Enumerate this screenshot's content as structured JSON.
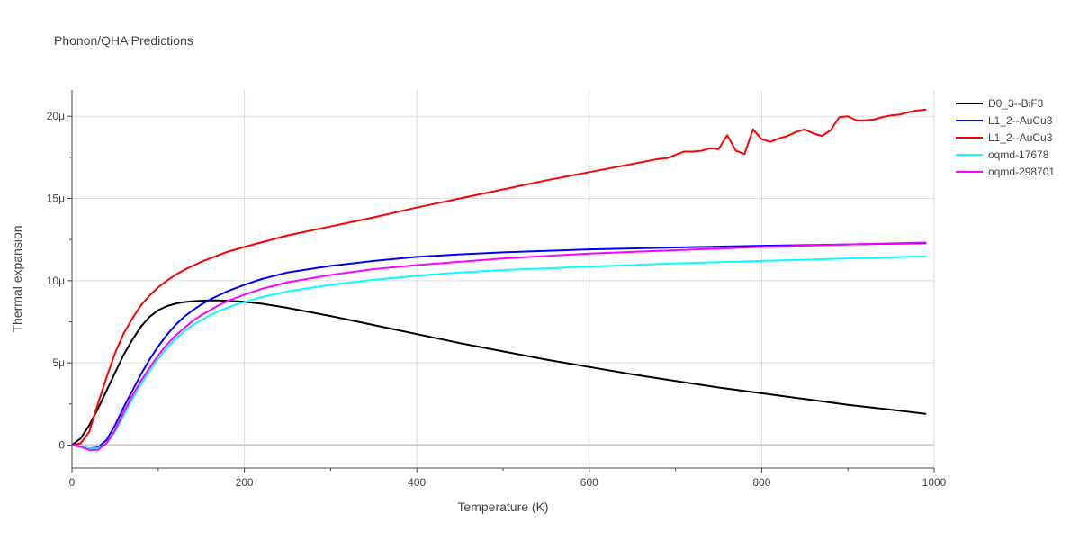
{
  "chart_data": {
    "type": "line",
    "title": "Phonon/QHA Predictions",
    "xlabel": "Temperature (K)",
    "ylabel": "Thermal expansion",
    "xlim": [
      0,
      1000
    ],
    "ylim": [
      -1.4e-06,
      2.16e-05
    ],
    "x_ticks": [
      {
        "value": 0,
        "label": "0"
      },
      {
        "value": 200,
        "label": "200"
      },
      {
        "value": 400,
        "label": "400"
      },
      {
        "value": 600,
        "label": "600"
      },
      {
        "value": 800,
        "label": "800"
      },
      {
        "value": 1000,
        "label": "1000"
      }
    ],
    "y_ticks": [
      {
        "value": 0,
        "label": "0"
      },
      {
        "value": 5e-06,
        "label": "5μ"
      },
      {
        "value": 1e-05,
        "label": "10μ"
      },
      {
        "value": 1.5e-05,
        "label": "15μ"
      },
      {
        "value": 2e-05,
        "label": "20μ"
      }
    ],
    "grid": true,
    "legend_position": "top-right",
    "series": [
      {
        "name": "D0_3--BiF3",
        "color": "#000000",
        "x": [
          0,
          10,
          20,
          30,
          40,
          50,
          60,
          70,
          80,
          90,
          100,
          110,
          120,
          130,
          140,
          150,
          160,
          170,
          180,
          190,
          200,
          220,
          250,
          300,
          350,
          400,
          450,
          500,
          550,
          600,
          650,
          700,
          750,
          800,
          850,
          900,
          950,
          990
        ],
        "y": [
          0,
          4e-07,
          1.2e-06,
          2.2e-06,
          3.3e-06,
          4.4e-06,
          5.5e-06,
          6.4e-06,
          7.2e-06,
          7.8e-06,
          8.2e-06,
          8.45e-06,
          8.6e-06,
          8.7e-06,
          8.75e-06,
          8.78e-06,
          8.8e-06,
          8.8e-06,
          8.78e-06,
          8.75e-06,
          8.72e-06,
          8.6e-06,
          8.35e-06,
          7.85e-06,
          7.3e-06,
          6.75e-06,
          6.2e-06,
          5.7e-06,
          5.2e-06,
          4.75e-06,
          4.3e-06,
          3.9e-06,
          3.5e-06,
          3.15e-06,
          2.8e-06,
          2.45e-06,
          2.15e-06,
          1.9e-06
        ]
      },
      {
        "name": "L1_2--AuCu3",
        "color": "#0000ff",
        "x": [
          0,
          10,
          20,
          30,
          40,
          50,
          60,
          70,
          80,
          90,
          100,
          110,
          120,
          130,
          140,
          150,
          160,
          170,
          180,
          190,
          200,
          220,
          250,
          300,
          350,
          400,
          450,
          500,
          600,
          700,
          800,
          900,
          990
        ],
        "y": [
          0,
          -1e-07,
          -2e-07,
          -1.5e-07,
          3e-07,
          1.2e-06,
          2.3e-06,
          3.3e-06,
          4.3e-06,
          5.2e-06,
          6e-06,
          6.7e-06,
          7.3e-06,
          7.8e-06,
          8.2e-06,
          8.55e-06,
          8.85e-06,
          9.1e-06,
          9.35e-06,
          9.55e-06,
          9.75e-06,
          1.01e-05,
          1.05e-05,
          1.09e-05,
          1.12e-05,
          1.145e-05,
          1.16e-05,
          1.172e-05,
          1.19e-05,
          1.202e-05,
          1.212e-05,
          1.22e-05,
          1.228e-05
        ]
      },
      {
        "name": "L1_2--AuCu3",
        "color": "#ff0000",
        "x": [
          0,
          10,
          20,
          30,
          40,
          50,
          60,
          70,
          80,
          90,
          100,
          110,
          120,
          130,
          140,
          150,
          160,
          180,
          200,
          250,
          300,
          350,
          400,
          450,
          500,
          550,
          600,
          650,
          680,
          690,
          710,
          720,
          730,
          740,
          750,
          760,
          770,
          780,
          790,
          800,
          810,
          820,
          830,
          840,
          850,
          860,
          870,
          880,
          890,
          900,
          910,
          920,
          930,
          940,
          950,
          960,
          970,
          980,
          990
        ],
        "y": [
          0,
          1e-07,
          8e-07,
          2.5e-06,
          4.1e-06,
          5.6e-06,
          6.8e-06,
          7.7e-06,
          8.5e-06,
          9.1e-06,
          9.6e-06,
          1e-05,
          1.035e-05,
          1.065e-05,
          1.09e-05,
          1.115e-05,
          1.135e-05,
          1.175e-05,
          1.205e-05,
          1.275e-05,
          1.33e-05,
          1.385e-05,
          1.445e-05,
          1.5e-05,
          1.555e-05,
          1.61e-05,
          1.66e-05,
          1.71e-05,
          1.74e-05,
          1.745e-05,
          1.785e-05,
          1.785e-05,
          1.79e-05,
          1.805e-05,
          1.8e-05,
          1.885e-05,
          1.79e-05,
          1.77e-05,
          1.92e-05,
          1.86e-05,
          1.845e-05,
          1.865e-05,
          1.88e-05,
          1.905e-05,
          1.92e-05,
          1.895e-05,
          1.88e-05,
          1.915e-05,
          1.995e-05,
          2e-05,
          1.975e-05,
          1.975e-05,
          1.98e-05,
          1.995e-05,
          2.005e-05,
          2.01e-05,
          2.025e-05,
          2.035e-05,
          2.04e-05
        ]
      },
      {
        "name": "oqmd-17678",
        "color": "#00ffff",
        "x": [
          0,
          10,
          20,
          30,
          40,
          50,
          60,
          70,
          80,
          90,
          100,
          110,
          120,
          130,
          140,
          150,
          160,
          170,
          180,
          190,
          200,
          220,
          250,
          300,
          350,
          400,
          450,
          500,
          600,
          700,
          800,
          900,
          990
        ],
        "y": [
          0,
          -1e-07,
          -2e-07,
          -2e-07,
          1e-07,
          8e-07,
          1.8e-06,
          2.8e-06,
          3.7e-06,
          4.5e-06,
          5.25e-06,
          5.9e-06,
          6.45e-06,
          6.9e-06,
          7.3e-06,
          7.6e-06,
          7.9e-06,
          8.15e-06,
          8.35e-06,
          8.55e-06,
          8.7e-06,
          9e-06,
          9.35e-06,
          9.75e-06,
          1.005e-05,
          1.03e-05,
          1.05e-05,
          1.065e-05,
          1.085e-05,
          1.105e-05,
          1.12e-05,
          1.135e-05,
          1.148e-05
        ]
      },
      {
        "name": "oqmd-298701",
        "color": "#ff00ff",
        "x": [
          0,
          10,
          20,
          30,
          40,
          50,
          60,
          70,
          80,
          90,
          100,
          110,
          120,
          130,
          140,
          150,
          160,
          170,
          180,
          190,
          200,
          220,
          250,
          300,
          350,
          400,
          450,
          500,
          600,
          700,
          800,
          900,
          990
        ],
        "y": [
          0,
          -1e-07,
          -3e-07,
          -3e-07,
          1e-07,
          9e-07,
          2e-06,
          3e-06,
          3.9e-06,
          4.7e-06,
          5.45e-06,
          6.1e-06,
          6.65e-06,
          7.1e-06,
          7.55e-06,
          7.9e-06,
          8.2e-06,
          8.5e-06,
          8.75e-06,
          8.95e-06,
          9.15e-06,
          9.5e-06,
          9.9e-06,
          1.035e-05,
          1.07e-05,
          1.095e-05,
          1.115e-05,
          1.135e-05,
          1.165e-05,
          1.185e-05,
          1.205e-05,
          1.22e-05,
          1.232e-05
        ]
      }
    ]
  }
}
